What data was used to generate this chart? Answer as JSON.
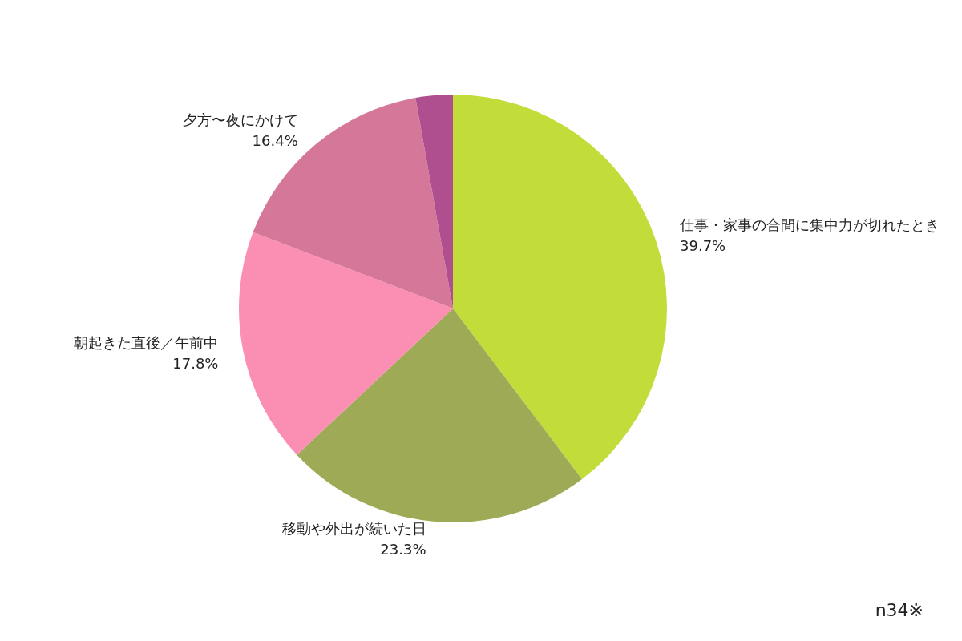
{
  "chart_data": {
    "type": "pie",
    "categories": [
      "仕事・家事の合間に集中力が切れたとき",
      "移動や外出が続いた日",
      "朝起きた直後／午前中",
      "夕方〜夜にかけて",
      null
    ],
    "values": [
      39.7,
      23.3,
      17.8,
      16.4,
      2.8
    ],
    "colors": [
      "#c2dc3a",
      "#9eaa55",
      "#fb8fb3",
      "#d57799",
      "#b04f8f"
    ],
    "data_labels": true,
    "value_labels": [
      "39.7%",
      "23.3%",
      "17.8%",
      "16.4%",
      null
    ],
    "legend": false,
    "annotations": [
      "n34※"
    ]
  }
}
